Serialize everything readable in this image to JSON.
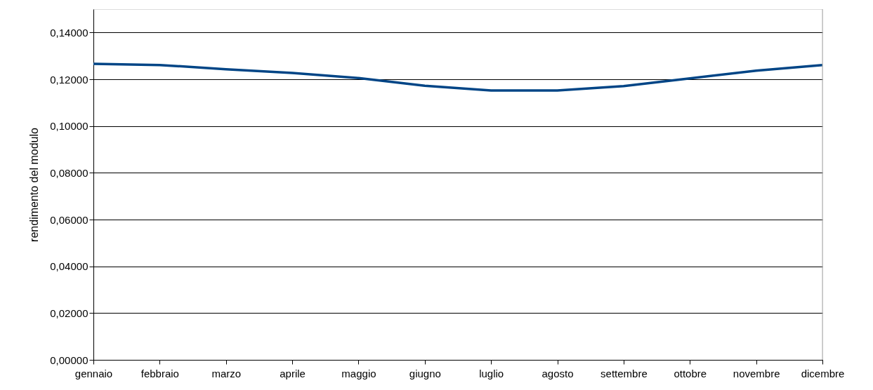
{
  "chart_data": {
    "type": "line",
    "ylabel": "rendimento del modulo",
    "categories": [
      "gennaio",
      "febbraio",
      "marzo",
      "aprile",
      "maggio",
      "giugno",
      "luglio",
      "agosto",
      "settembre",
      "ottobre",
      "novembre",
      "dicembre"
    ],
    "series": [
      {
        "color": "#004586",
        "values": [
          0.1266,
          0.1261,
          0.1243,
          0.1227,
          0.1205,
          0.1172,
          0.1152,
          0.1152,
          0.1171,
          0.1204,
          0.1237,
          0.1261
        ]
      }
    ],
    "ylim": [
      0,
      0.15
    ],
    "yticks": [
      {
        "value": 0,
        "label": "0,00000"
      },
      {
        "value": 0.02,
        "label": "0,02000"
      },
      {
        "value": 0.04,
        "label": "0,04000"
      },
      {
        "value": 0.06,
        "label": "0,06000"
      },
      {
        "value": 0.08,
        "label": "0,08000"
      },
      {
        "value": 0.1,
        "label": "0,10000"
      },
      {
        "value": 0.12,
        "label": "0,12000"
      },
      {
        "value": 0.14,
        "label": "0,14000"
      }
    ],
    "grid": "y",
    "marker": "none",
    "line_style": "solid"
  }
}
